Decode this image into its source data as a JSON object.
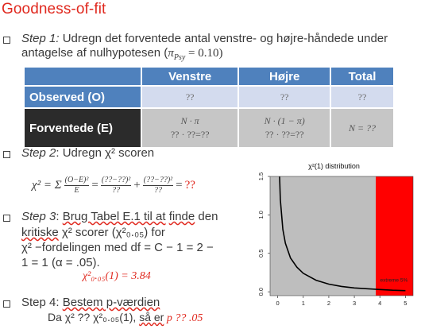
{
  "title": "Goodness-of-fit",
  "step1": {
    "label": "Step 1:",
    "text_line1": " Udregn det forventede antal venstre- og højre-håndede under",
    "text_line2": "antagelse af nulhypotesen (",
    "pi_sym": "π",
    "pi_sub": "Psy",
    "pi_value": " = 0.10)"
  },
  "table": {
    "headers": [
      "",
      "Venstre",
      "Højre",
      "Total"
    ],
    "observed_label": "Observed (O)",
    "observed_cells": [
      "??",
      "??",
      "??"
    ],
    "expected_label": "Forventede (E)",
    "expected_cells": [
      {
        "line1": "N · π",
        "line2": "?? · ??=??"
      },
      {
        "line1": "N · (1 − π)",
        "line2": "?? · ??=??"
      },
      {
        "line1": "N = ??",
        "line2": ""
      }
    ]
  },
  "step2": {
    "label": "Step 2",
    "text": ": Udregn χ² scoren"
  },
  "formula": {
    "lhs": "χ² = Σ",
    "frac1_num": "(O−E)²",
    "frac1_den": "E",
    "eq1": "=",
    "frac2_num": "(??−??)²",
    "frac2_den": "??",
    "plus": "+",
    "frac3_num": "(??−??)²",
    "frac3_den": "??",
    "eq2": "=",
    "result": "??"
  },
  "step3": {
    "label": "Step 3",
    "line1_pre": ": ",
    "line1_u1": "Brug Tabel E.1 til at",
    "line1_mid": " ",
    "line1_u2": "finde",
    "line1_post": " den",
    "line2_u": "kritiske",
    "line2_post": " χ² scorer (χ²₀.₀₅) for",
    "line3": "χ² −fordelingen med df = C − 1 = 2 −",
    "line4": "1 = 1 (α = .05).",
    "critical": "χ²₀.₀₅(1) = 3.84"
  },
  "step4": {
    "label": "Step 4: ",
    "u1": "Bestem",
    "u2": " p-værdien",
    "line2_pre": "Da χ² ?? χ²₀.₀₅(1), ",
    "line2_u": "så er",
    "line2_red": " p ?? .05"
  },
  "chart_data": {
    "type": "line",
    "title": "χ²(1) distribution",
    "xlim": [
      -0.3,
      5.3
    ],
    "ylim": [
      -0.05,
      1.5
    ],
    "x_ticks": [
      0,
      1,
      2,
      3,
      4,
      5
    ],
    "y_ticks": [
      0.0,
      0.5,
      1.0,
      1.5
    ],
    "y_tick_labels": [
      "0.0",
      "0.5",
      "1.0",
      "1.5"
    ],
    "critical_value": 3.84,
    "shaded_acceptance_color": "#bebebe",
    "shaded_rejection_color": "#ff0000",
    "rejection_label": "extreme 5%",
    "series": [
      {
        "x": [
          0.02,
          0.05,
          0.1,
          0.2,
          0.3,
          0.5,
          0.75,
          1.0,
          1.5,
          2.0,
          2.5,
          3.0,
          3.5,
          4.0,
          4.5,
          5.0
        ],
        "y": [
          2.78,
          1.73,
          1.2,
          0.81,
          0.63,
          0.44,
          0.32,
          0.24,
          0.15,
          0.1,
          0.07,
          0.05,
          0.04,
          0.03,
          0.02,
          0.015
        ]
      }
    ]
  },
  "colors": {
    "title_red": "#e0291f",
    "header_blue": "#4f81bd",
    "observed_row": "#d3dbee",
    "expected_row": "#c6c6c6",
    "expected_head": "#2b2b2b"
  }
}
